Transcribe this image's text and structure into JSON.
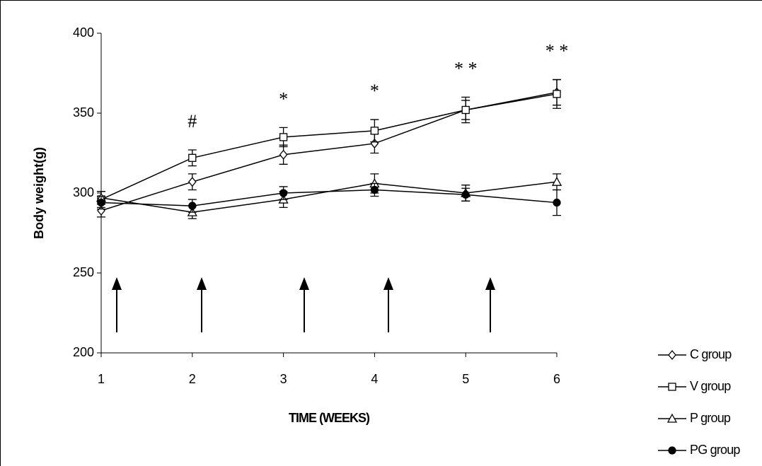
{
  "chart_data": {
    "type": "line",
    "xlabel": "TIME (WEEKS)",
    "ylabel": "Body weight(g)",
    "x": [
      1,
      2,
      3,
      4,
      5,
      6
    ],
    "xlim": [
      1,
      6
    ],
    "xticks": [
      1,
      2,
      3,
      4,
      5,
      6
    ],
    "ylim": [
      200,
      400
    ],
    "yticks": [
      200,
      250,
      300,
      350,
      400
    ],
    "grid": false,
    "legend": "bottom-right",
    "series": [
      {
        "name": "C group",
        "color": "#000000",
        "marker": "diamond",
        "marker_fill": "#ffffff",
        "values": [
          289,
          307,
          324,
          331,
          352,
          363
        ],
        "errors": [
          4,
          5,
          6,
          6,
          6,
          8
        ]
      },
      {
        "name": "V group",
        "color": "#000000",
        "marker": "square",
        "marker_fill": "#ffffff",
        "values": [
          296,
          322,
          335,
          339,
          352,
          362
        ],
        "errors": [
          5,
          5,
          6,
          7,
          8,
          9
        ]
      },
      {
        "name": "P group",
        "color": "#000000",
        "marker": "triangle",
        "marker_fill": "#ffffff",
        "values": [
          297,
          288,
          296,
          306,
          300,
          307
        ],
        "errors": [
          4,
          4,
          5,
          6,
          5,
          5
        ]
      },
      {
        "name": "PG group",
        "color": "#000000",
        "marker": "circle",
        "marker_fill": "#000000",
        "values": [
          294,
          292,
          300,
          302,
          299,
          294
        ],
        "errors": [
          4,
          4,
          4,
          4,
          4,
          8
        ]
      }
    ],
    "annotations": [
      {
        "x": 2,
        "text": "#"
      },
      {
        "x": 3,
        "text": "*"
      },
      {
        "x": 4,
        "text": "*"
      },
      {
        "x": 5,
        "text": "* *"
      },
      {
        "x": 6,
        "text": "* *"
      }
    ]
  }
}
